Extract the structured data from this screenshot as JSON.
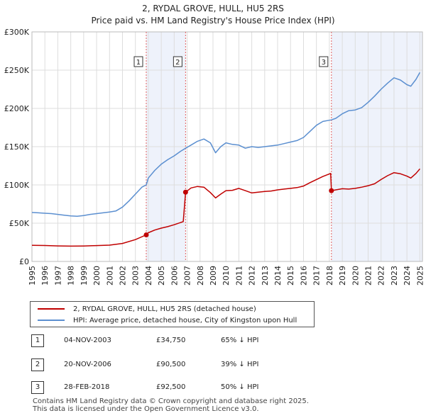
{
  "title_line1": "2, RYDAL GROVE, HULL, HU5 2RS",
  "title_line2": "Price paid vs. HM Land Registry's House Price Index (HPI)",
  "chart_data": {
    "type": "line",
    "title": "2, RYDAL GROVE, HULL, HU5 2RS",
    "subtitle": "Price paid vs. HM Land Registry's House Price Index (HPI)",
    "xlabel": "",
    "ylabel": "",
    "xlim": [
      1995,
      2025.2
    ],
    "ylim": [
      0,
      300000
    ],
    "yticks": [
      0,
      50000,
      100000,
      150000,
      200000,
      250000,
      300000
    ],
    "ytick_labels": [
      "£0",
      "£50K",
      "£100K",
      "£150K",
      "£200K",
      "£250K",
      "£300K"
    ],
    "xticks": [
      1995,
      1996,
      1997,
      1998,
      1999,
      2000,
      2001,
      2002,
      2003,
      2004,
      2005,
      2006,
      2007,
      2008,
      2009,
      2010,
      2011,
      2012,
      2013,
      2014,
      2015,
      2016,
      2017,
      2018,
      2019,
      2020,
      2021,
      2022,
      2023,
      2024,
      2025
    ],
    "grid": true,
    "shaded_ranges": [
      [
        2003.84,
        2006.88
      ],
      [
        2018.16,
        2025.2
      ]
    ],
    "colors": {
      "property": "#c00000",
      "hpi": "#5b8fd0",
      "shade": "#eef2fb",
      "grid": "#dddddd",
      "marker_line": "#e06060"
    },
    "series": [
      {
        "name": "2, RYDAL GROVE, HULL, HU5 2RS (detached house)",
        "color": "#c00000",
        "points": [
          [
            1995,
            21000
          ],
          [
            1996,
            20800
          ],
          [
            1997,
            20300
          ],
          [
            1998,
            20000
          ],
          [
            1999,
            20200
          ],
          [
            2000,
            20700
          ],
          [
            2001,
            21300
          ],
          [
            2002,
            23500
          ],
          [
            2003,
            28500
          ],
          [
            2003.84,
            34750
          ],
          [
            2004,
            37500
          ],
          [
            2004.5,
            41000
          ],
          [
            2005,
            43500
          ],
          [
            2005.5,
            45500
          ],
          [
            2006,
            48000
          ],
          [
            2006.7,
            52000
          ],
          [
            2006.88,
            90500
          ],
          [
            2007.3,
            96000
          ],
          [
            2007.8,
            98000
          ],
          [
            2008.3,
            97000
          ],
          [
            2008.8,
            90000
          ],
          [
            2009.2,
            83000
          ],
          [
            2009.6,
            88000
          ],
          [
            2010,
            92500
          ],
          [
            2010.5,
            93000
          ],
          [
            2011,
            95500
          ],
          [
            2011.5,
            92500
          ],
          [
            2012,
            89500
          ],
          [
            2012.5,
            90500
          ],
          [
            2013,
            91500
          ],
          [
            2013.5,
            92000
          ],
          [
            2014,
            93500
          ],
          [
            2014.5,
            94500
          ],
          [
            2015,
            95500
          ],
          [
            2015.5,
            96500
          ],
          [
            2016,
            98500
          ],
          [
            2016.5,
            103000
          ],
          [
            2017,
            107000
          ],
          [
            2017.5,
            111000
          ],
          [
            2018.1,
            115000
          ],
          [
            2018.16,
            92500
          ],
          [
            2018.5,
            93500
          ],
          [
            2019,
            95000
          ],
          [
            2019.5,
            94500
          ],
          [
            2020,
            95500
          ],
          [
            2020.5,
            97000
          ],
          [
            2021,
            99000
          ],
          [
            2021.5,
            101500
          ],
          [
            2022,
            107000
          ],
          [
            2022.5,
            112000
          ],
          [
            2023,
            116000
          ],
          [
            2023.5,
            114500
          ],
          [
            2024,
            111500
          ],
          [
            2024.3,
            109000
          ],
          [
            2024.7,
            115000
          ],
          [
            2025,
            121000
          ]
        ]
      },
      {
        "name": "HPI: Average price, detached house, City of Kingston upon Hull",
        "color": "#5b8fd0",
        "points": [
          [
            1995,
            64000
          ],
          [
            1995.5,
            63500
          ],
          [
            1996,
            63000
          ],
          [
            1996.5,
            62500
          ],
          [
            1997,
            61500
          ],
          [
            1997.5,
            60500
          ],
          [
            1998,
            59500
          ],
          [
            1998.5,
            59000
          ],
          [
            1999,
            60000
          ],
          [
            1999.5,
            61500
          ],
          [
            2000,
            62500
          ],
          [
            2000.5,
            63500
          ],
          [
            2001,
            64500
          ],
          [
            2001.5,
            66000
          ],
          [
            2002,
            71000
          ],
          [
            2002.5,
            79000
          ],
          [
            2003,
            88000
          ],
          [
            2003.5,
            97000
          ],
          [
            2003.84,
            100000
          ],
          [
            2004,
            109000
          ],
          [
            2004.5,
            119000
          ],
          [
            2005,
            127000
          ],
          [
            2005.5,
            133000
          ],
          [
            2006,
            138000
          ],
          [
            2006.5,
            144000
          ],
          [
            2006.88,
            148000
          ],
          [
            2007.3,
            152000
          ],
          [
            2007.8,
            157000
          ],
          [
            2008.3,
            160000
          ],
          [
            2008.8,
            155000
          ],
          [
            2009.2,
            142000
          ],
          [
            2009.6,
            150000
          ],
          [
            2010,
            155000
          ],
          [
            2010.5,
            153000
          ],
          [
            2011,
            152000
          ],
          [
            2011.5,
            148000
          ],
          [
            2012,
            150000
          ],
          [
            2012.5,
            149000
          ],
          [
            2013,
            150000
          ],
          [
            2013.5,
            151000
          ],
          [
            2014,
            152000
          ],
          [
            2014.5,
            154000
          ],
          [
            2015,
            156000
          ],
          [
            2015.5,
            158000
          ],
          [
            2016,
            162000
          ],
          [
            2016.5,
            170000
          ],
          [
            2017,
            178000
          ],
          [
            2017.5,
            183000
          ],
          [
            2018,
            184500
          ],
          [
            2018.16,
            185000
          ],
          [
            2018.5,
            187000
          ],
          [
            2019,
            193000
          ],
          [
            2019.5,
            197000
          ],
          [
            2020,
            198000
          ],
          [
            2020.5,
            201000
          ],
          [
            2021,
            208000
          ],
          [
            2021.5,
            216000
          ],
          [
            2022,
            225000
          ],
          [
            2022.5,
            233000
          ],
          [
            2023,
            240000
          ],
          [
            2023.5,
            237000
          ],
          [
            2024,
            231000
          ],
          [
            2024.3,
            229000
          ],
          [
            2024.7,
            238000
          ],
          [
            2025,
            247000
          ]
        ]
      }
    ],
    "sale_markers": [
      {
        "label": "1",
        "x": 2003.84,
        "y": 34750
      },
      {
        "label": "2",
        "x": 2006.88,
        "y": 90500
      },
      {
        "label": "3",
        "x": 2018.16,
        "y": 92500
      }
    ]
  },
  "legend": {
    "property_label": "2, RYDAL GROVE, HULL, HU5 2RS (detached house)",
    "hpi_label": "HPI: Average price, detached house, City of Kingston upon Hull"
  },
  "sales": [
    {
      "num": "1",
      "date": "04-NOV-2003",
      "price": "£34,750",
      "hpi": "65% ↓ HPI"
    },
    {
      "num": "2",
      "date": "20-NOV-2006",
      "price": "£90,500",
      "hpi": "39% ↓ HPI"
    },
    {
      "num": "3",
      "date": "28-FEB-2018",
      "price": "£92,500",
      "hpi": "50% ↓ HPI"
    }
  ],
  "footer": {
    "line1": "Contains HM Land Registry data © Crown copyright and database right 2025.",
    "line2": "This data is licensed under the Open Government Licence v3.0."
  }
}
